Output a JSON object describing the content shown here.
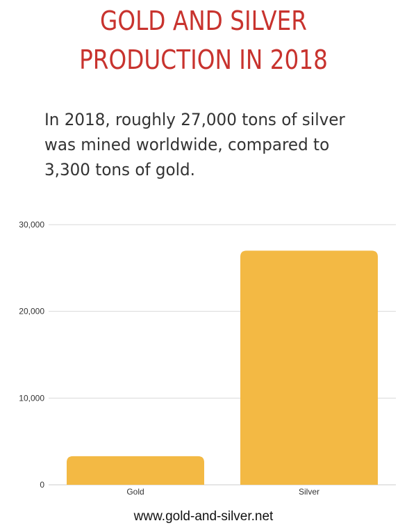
{
  "header": {
    "title_lines": [
      "GOLD AND SILVER",
      "PRODUCTION IN 2018"
    ],
    "subtitle_lines": [
      "In 2018, roughly 27,000 tons of silver",
      "was mined worldwide, compared to",
      "3,300 tons of gold."
    ]
  },
  "footer": {
    "source": "www.gold-and-silver.net"
  },
  "colors": {
    "title": "#c8332e",
    "bar": "#f3b944",
    "grid": "#d9d9d9"
  },
  "chart_data": {
    "type": "bar",
    "categories": [
      "Gold",
      "Silver"
    ],
    "values": [
      3300,
      27000
    ],
    "ylim": [
      0,
      30000
    ],
    "yticks": [
      0,
      10000,
      20000,
      30000
    ],
    "ytick_labels": [
      "0",
      "10,000",
      "20,000",
      "30,000"
    ],
    "grid": true,
    "legend": "none"
  }
}
